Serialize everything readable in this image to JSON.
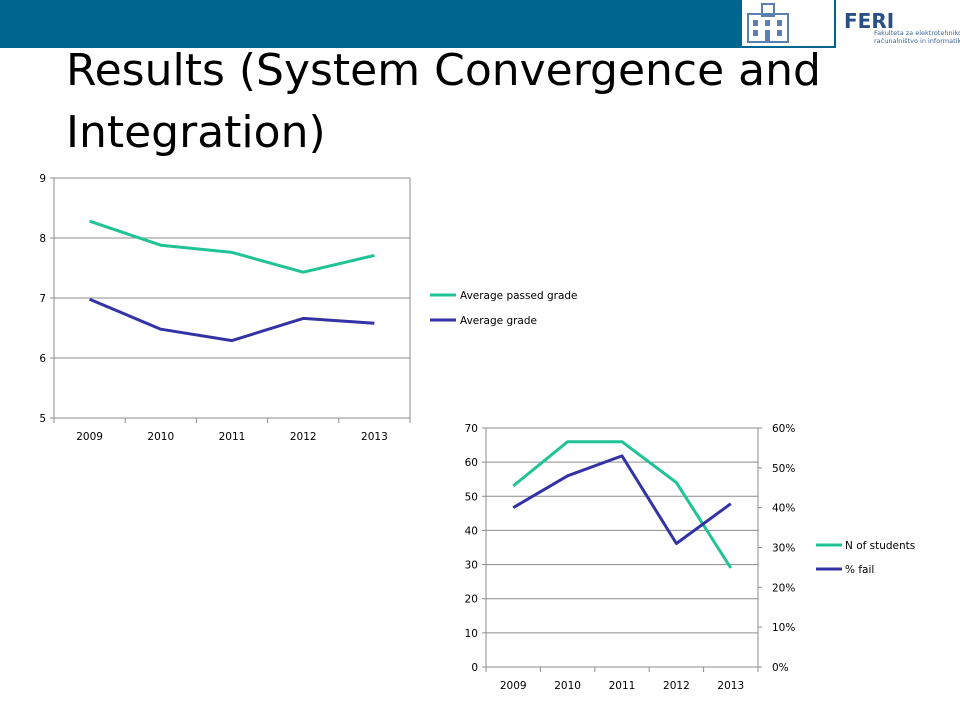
{
  "header": {
    "bar_color": "#006690",
    "logo_text": "FERI",
    "logo_subtitle": [
      "Fakulteta za elektrotehniko,",
      "računalništvo in informatiko"
    ]
  },
  "slide": {
    "title_lines": [
      "Results (System Convergence and",
      "Integration)"
    ]
  },
  "chart_data": [
    {
      "type": "line",
      "title": "",
      "categories": [
        "2009",
        "2010",
        "2011",
        "2012",
        "2013"
      ],
      "ylim": [
        5,
        9
      ],
      "yticks": [
        "5",
        "6",
        "7",
        "8",
        "9"
      ],
      "grid": true,
      "legend_position": "right",
      "series": [
        {
          "name": "Average  passed grade",
          "color": "#1fc395",
          "values": [
            8.28,
            7.88,
            7.76,
            7.43,
            7.71
          ]
        },
        {
          "name": "Average   grade",
          "color": "#3333a6",
          "values": [
            6.98,
            6.48,
            6.29,
            6.66,
            6.58
          ]
        }
      ]
    },
    {
      "type": "line",
      "title": "",
      "categories": [
        "2009",
        "2010",
        "2011",
        "2012",
        "2013"
      ],
      "ylim": [
        0,
        70
      ],
      "yticks": [
        "0",
        "10",
        "20",
        "30",
        "40",
        "50",
        "60",
        "70"
      ],
      "y2lim": [
        0,
        0.6
      ],
      "y2ticks": [
        "0%",
        "10%",
        "20%",
        "30%",
        "40%",
        "50%",
        "60%"
      ],
      "grid": true,
      "legend_position": "right",
      "series": [
        {
          "name": "N of students",
          "color": "#1fc395",
          "axis": "left",
          "values": [
            53,
            66,
            66,
            54,
            29
          ]
        },
        {
          "name": "% fail",
          "color": "#3333a6",
          "axis": "right",
          "values": [
            0.4,
            0.48,
            0.53,
            0.31,
            0.41
          ]
        }
      ]
    }
  ]
}
